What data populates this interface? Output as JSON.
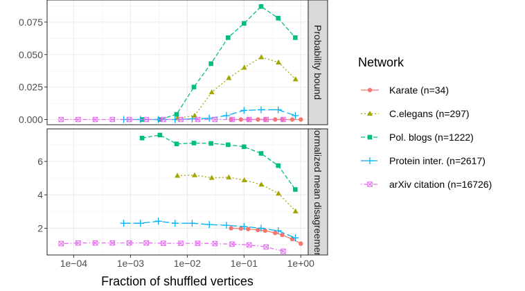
{
  "chart_data": {
    "type": "line",
    "xlabel": "Fraction of shuffled vertices",
    "x_scale": "log10",
    "x_ticks": [
      0.0001,
      0.001,
      0.01,
      0.1,
      1
    ],
    "x_tick_labels": [
      "1e−04",
      "1e−03",
      "1e−02",
      "1e−01",
      "1e+00"
    ],
    "xlim": [
      3.4e-05,
      1.35
    ],
    "legend": {
      "title": "Network",
      "position": "right"
    },
    "series": [
      {
        "name": "Karate (n=34)",
        "color": "#F8766D",
        "marker": "circle",
        "dash": "solid"
      },
      {
        "name": "C.elegans (n=297)",
        "color": "#A3A500",
        "marker": "triangle",
        "dash": "dotted"
      },
      {
        "name": "Pol. blogs (n=1222)",
        "color": "#00BF7D",
        "marker": "square",
        "dash": "dashed"
      },
      {
        "name": "Protein inter. (n=2617)",
        "color": "#00B0F6",
        "marker": "plus",
        "dash": "longdash"
      },
      {
        "name": "arXiv citation (n=16726)",
        "color": "#E76BF3",
        "marker": "boxx",
        "dash": "dotdash"
      }
    ],
    "panels": [
      {
        "strip": "Probability bound",
        "ylim": [
          -0.004,
          0.092
        ],
        "y_ticks": [
          0,
          0.025,
          0.05,
          0.075
        ],
        "y_tick_labels": [
          "0.000",
          "0.025",
          "0.050",
          "0.075"
        ],
        "lines": [
          {
            "x": [
              0.059,
              0.088,
              0.118,
              0.176,
              0.235,
              0.353,
              0.47,
              0.706,
              1.0
            ],
            "y": [
              0,
              0,
              0,
              0,
              0,
              0,
              0,
              0,
              0
            ]
          },
          {
            "x": [
              0.0067,
              0.0135,
              0.027,
              0.054,
              0.101,
              0.202,
              0.404,
              0.808
            ],
            "y": [
              0.001,
              0.003,
              0.021,
              0.032,
              0.04,
              0.048,
              0.044,
              0.031
            ]
          },
          {
            "x": [
              0.0016,
              0.0033,
              0.0065,
              0.0131,
              0.0262,
              0.0524,
              0.1,
              0.2,
              0.4,
              0.8
            ],
            "y": [
              0,
              0,
              0.004,
              0.025,
              0.043,
              0.063,
              0.074,
              0.087,
              0.078,
              0.063
            ]
          },
          {
            "x": [
              0.00076,
              0.0015,
              0.0031,
              0.0061,
              0.0122,
              0.0245,
              0.049,
              0.1,
              0.2,
              0.4,
              0.8
            ],
            "y": [
              0,
              0,
              0,
              0,
              0.0005,
              0.001,
              0.003,
              0.007,
              0.0075,
              0.0075,
              0.003
            ]
          },
          {
            "x": [
              6e-05,
              0.00012,
              0.00024,
              0.00048,
              0.00095,
              0.0019,
              0.0038,
              0.0077,
              0.0153,
              0.0307,
              0.0614,
              0.123,
              0.245,
              0.49
            ],
            "y": [
              0,
              0,
              0,
              0,
              0,
              0,
              0,
              0,
              0,
              0,
              0,
              0,
              0,
              0
            ]
          }
        ]
      },
      {
        "strip": "Normalized mean disagreement",
        "ylim": [
          0.4,
          7.95
        ],
        "y_ticks": [
          2,
          4,
          6
        ],
        "y_tick_labels": [
          "2",
          "4",
          "6"
        ],
        "lines": [
          {
            "x": [
              0.059,
              0.088,
              0.118,
              0.176,
              0.235,
              0.353,
              0.47,
              0.706,
              1.0
            ],
            "y": [
              2.0,
              1.98,
              1.95,
              1.9,
              1.85,
              1.72,
              1.6,
              1.35,
              1.08
            ]
          },
          {
            "x": [
              0.0067,
              0.0135,
              0.027,
              0.054,
              0.101,
              0.202,
              0.404,
              0.808
            ],
            "y": [
              5.15,
              5.18,
              5.02,
              5.05,
              4.88,
              4.62,
              4.08,
              3.02
            ]
          },
          {
            "x": [
              0.0016,
              0.0033,
              0.0065,
              0.0131,
              0.0262,
              0.0524,
              0.1,
              0.2,
              0.4,
              0.8
            ],
            "y": [
              7.4,
              7.58,
              7.05,
              7.1,
              7.08,
              7.0,
              6.88,
              6.48,
              5.75,
              4.32
            ]
          },
          {
            "x": [
              0.00076,
              0.0015,
              0.0031,
              0.0061,
              0.0122,
              0.0245,
              0.049,
              0.1,
              0.2,
              0.4,
              0.8
            ],
            "y": [
              2.3,
              2.3,
              2.42,
              2.3,
              2.3,
              2.22,
              2.18,
              2.1,
              2.0,
              1.85,
              1.42
            ]
          },
          {
            "x": [
              6e-05,
              0.00012,
              0.00024,
              0.00048,
              0.00095,
              0.0019,
              0.0038,
              0.0077,
              0.0153,
              0.0307,
              0.0614,
              0.123,
              0.245,
              0.49
            ],
            "y": [
              1.08,
              1.12,
              1.12,
              1.12,
              1.12,
              1.12,
              1.1,
              1.1,
              1.1,
              1.08,
              1.05,
              1.0,
              0.88,
              0.62
            ]
          }
        ]
      }
    ]
  }
}
